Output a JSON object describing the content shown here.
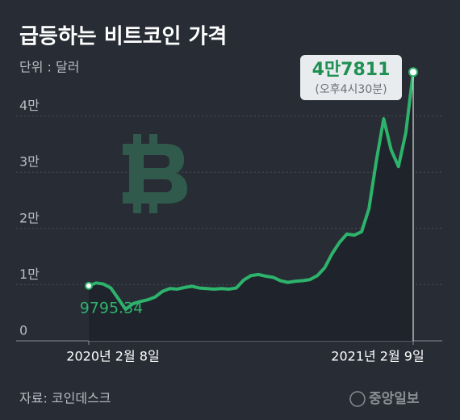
{
  "chart_data": {
    "type": "line",
    "title": "급등하는 비트코인 가격",
    "subtitle": "단위 : 달러",
    "categories": [
      "2020년 2월 8일",
      null,
      null,
      null,
      null,
      null,
      null,
      null,
      null,
      null,
      null,
      null,
      null,
      null,
      null,
      null,
      null,
      null,
      null,
      null,
      null,
      null,
      null,
      null,
      null,
      null,
      null,
      null,
      null,
      null,
      null,
      null,
      null,
      null,
      null,
      null,
      null,
      null,
      null,
      null,
      null,
      null,
      null,
      null,
      "2021년 2월 9일"
    ],
    "series": [
      {
        "name": "비트코인 가격",
        "color": "#2db36b",
        "values": [
          9795.34,
          10300,
          10100,
          9400,
          7500,
          5600,
          6600,
          7000,
          7300,
          7800,
          8800,
          9300,
          9200,
          9500,
          9700,
          9400,
          9300,
          9200,
          9300,
          9200,
          9400,
          10800,
          11600,
          11800,
          11500,
          11300,
          10700,
          10400,
          10600,
          10700,
          10900,
          11600,
          13000,
          15500,
          17500,
          19000,
          18800,
          19400,
          23500,
          32000,
          39500,
          34000,
          31000,
          37000,
          47811
        ]
      }
    ],
    "ylim": [
      0,
      47811
    ],
    "yticks": [
      0,
      {
        "value": 10000,
        "label": "1만"
      },
      {
        "value": 20000,
        "label": "2만"
      },
      {
        "value": 30000,
        "label": "3만"
      },
      {
        "value": 40000,
        "label": "4만"
      }
    ],
    "grid": true,
    "annotations": {
      "start": "9795.34",
      "end": "4만7811",
      "end_time": "(오후4시30분)"
    },
    "source": "자료: 코인데스크",
    "publisher": "중앙일보"
  }
}
